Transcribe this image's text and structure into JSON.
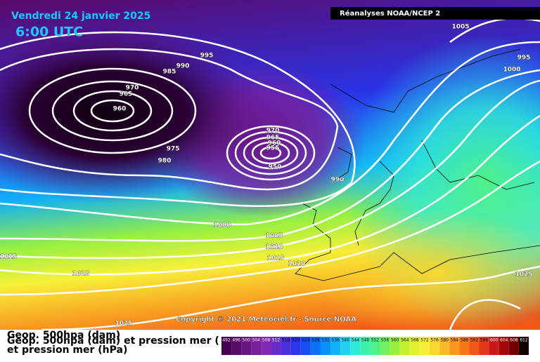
{
  "header": {
    "date": "Vendredi 24 janvier 2025",
    "time": "6:00 UTC",
    "source": "Réanalyses NOAA/NCEP 2"
  },
  "isobar_labels": [
    1005,
    995,
    995,
    990,
    985,
    1000,
    970,
    965,
    960,
    975,
    980,
    970,
    965,
    960,
    955,
    950,
    990,
    1000,
    1005,
    1010,
    1015,
    1015,
    1020,
    1025,
    1025,
    1025
  ],
  "copyright": "Copyright © 2021 Meteociel.fr - Source NOAA",
  "legend": {
    "caption_top": "Geop. 500hpa (dam)",
    "caption_overlay": "Geop. 500hpa (dam) et pression mer (hPa)",
    "caption_bottom": "et pression mer (hPa)",
    "values": [
      492,
      496,
      500,
      504,
      508,
      512,
      516,
      520,
      524,
      528,
      532,
      536,
      540,
      544,
      548,
      552,
      556,
      560,
      564,
      568,
      572,
      576,
      580,
      584,
      588,
      592,
      596,
      600,
      604,
      608,
      612
    ],
    "colors": [
      "#4a0050",
      "#5a0a6a",
      "#6a1483",
      "#7a1e9c",
      "#8428b4",
      "#6a2cc8",
      "#4a30d8",
      "#2a34e8",
      "#1450f0",
      "#0a70f5",
      "#0a90f8",
      "#10b0f8",
      "#20d0f0",
      "#30e8d8",
      "#40f0b0",
      "#50f088",
      "#70f060",
      "#98f040",
      "#c0f030",
      "#e0f030",
      "#f8f038",
      "#f8d830",
      "#f8b828",
      "#f89820",
      "#f87818",
      "#f05818",
      "#e03818",
      "#c81818",
      "#a00808",
      "#700000",
      "#100000"
    ]
  }
}
